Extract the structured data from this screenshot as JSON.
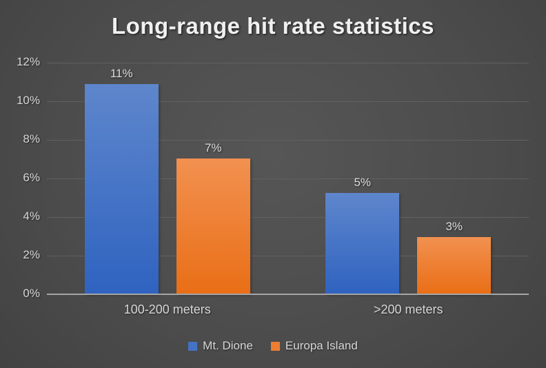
{
  "chart_data": {
    "type": "bar",
    "title": "Long-range hit rate statistics",
    "categories": [
      "100-200 meters",
      ">200 meters"
    ],
    "series": [
      {
        "name": "Mt. Dione",
        "values": [
          10.9,
          5.25
        ],
        "value_labels": [
          "11%",
          "5%"
        ],
        "swatch_color": "#4472c4",
        "bar_gradient_top": "#5e86cc",
        "bar_gradient_bottom": "#2f63c0"
      },
      {
        "name": "Europa Island",
        "values": [
          7.05,
          2.95
        ],
        "value_labels": [
          "7%",
          "3%"
        ],
        "swatch_color": "#ed7d31",
        "bar_gradient_top": "#f29150",
        "bar_gradient_bottom": "#e96e16"
      }
    ],
    "xlabel": "",
    "ylabel": "",
    "ylim": [
      0,
      12
    ],
    "ytick_labels": [
      "0%",
      "2%",
      "4%",
      "6%",
      "8%",
      "10%",
      "12%"
    ],
    "grid": true,
    "legend_position": "bottom",
    "colors": {
      "background_center": "#555555",
      "background_edge": "#242424",
      "gridline": "#616161",
      "axis_line": "#a6a6a6",
      "label_text": "#d6d6d6",
      "title_text": "#f0f0f0"
    }
  }
}
